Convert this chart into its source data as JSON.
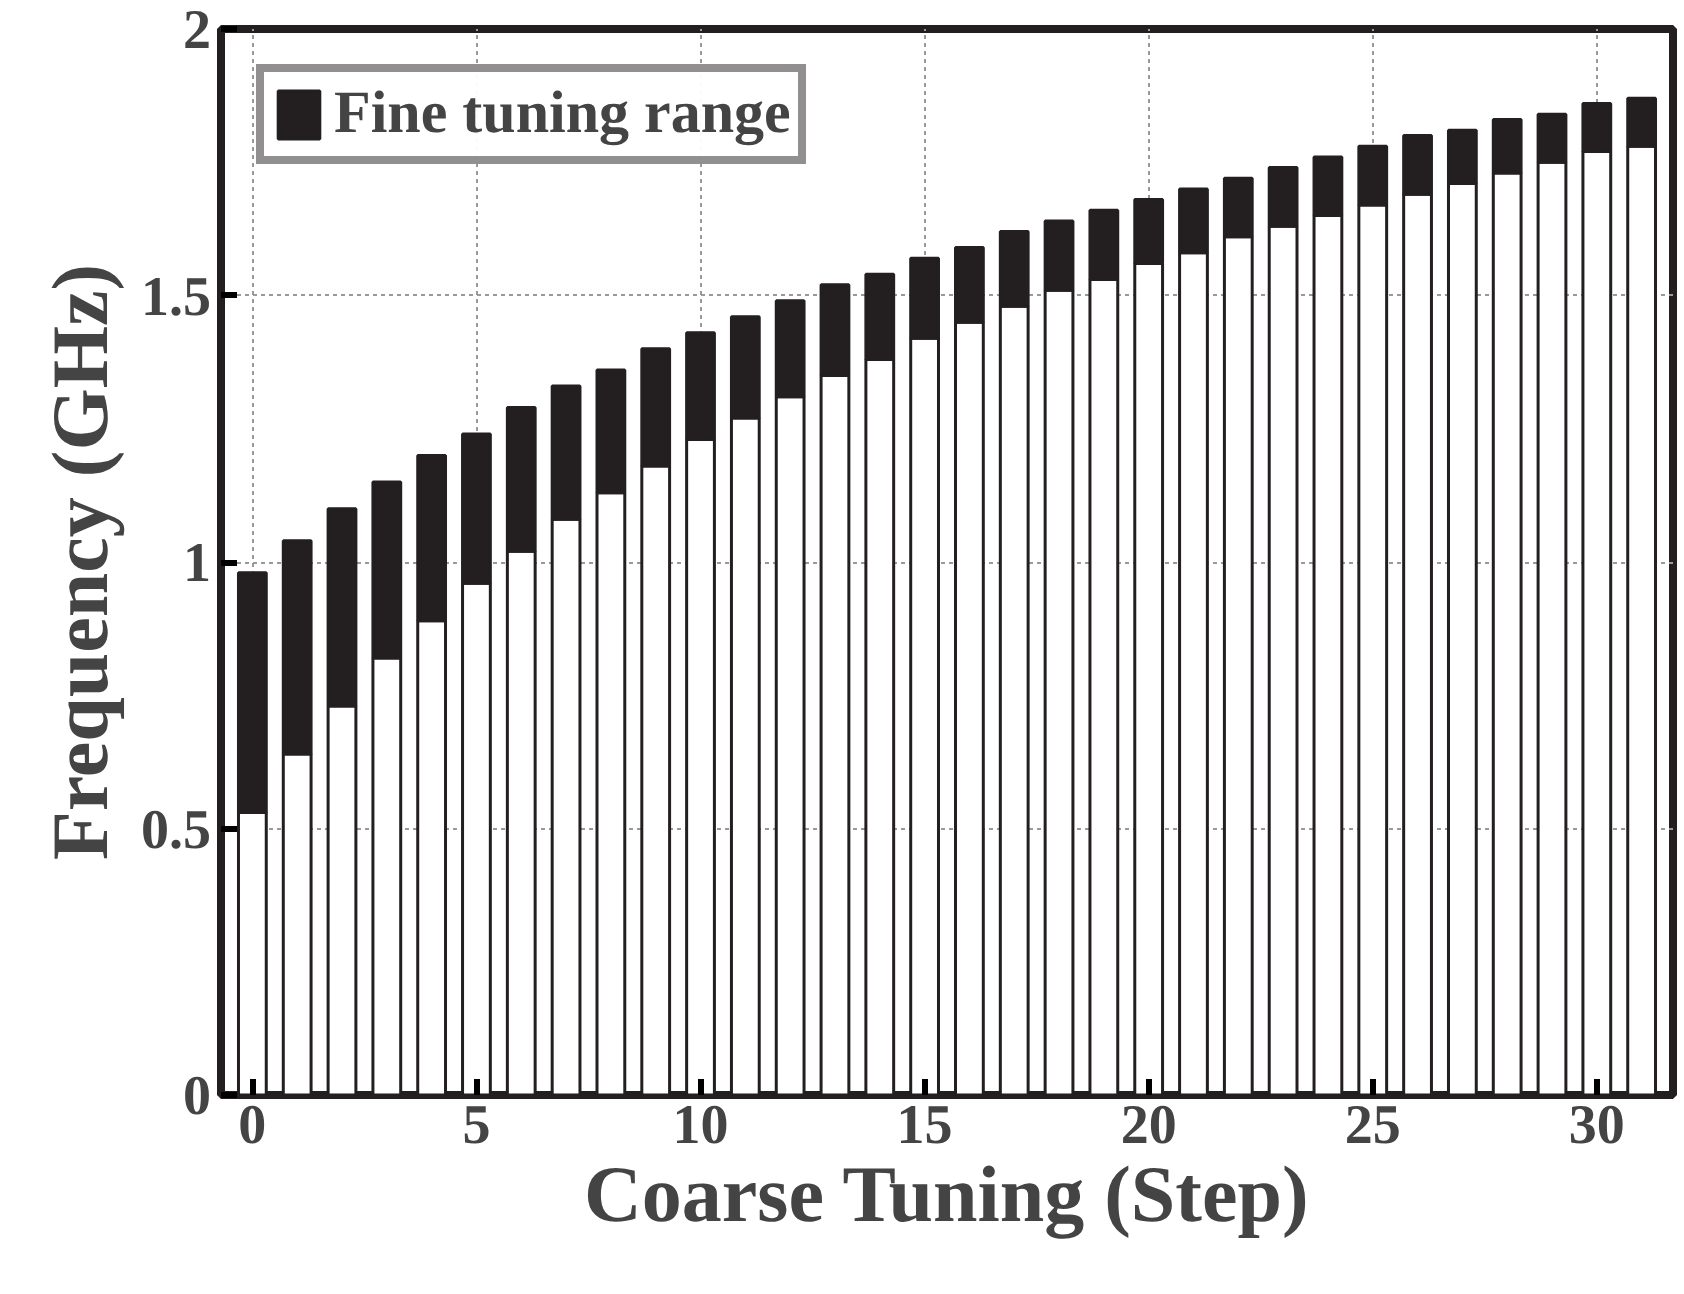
{
  "chart_data": {
    "type": "bar",
    "stacked": true,
    "xlabel": "Coarse Tuning (Step)",
    "ylabel": "Frequency (GHz)",
    "x": [
      0,
      1,
      2,
      3,
      4,
      5,
      6,
      7,
      8,
      9,
      10,
      11,
      12,
      13,
      14,
      15,
      16,
      17,
      18,
      19,
      20,
      21,
      22,
      23,
      24,
      25,
      26,
      27,
      28,
      29,
      30,
      31
    ],
    "series": [
      {
        "color": "#ffffff",
        "values": [
          0.53,
          0.64,
          0.73,
          0.82,
          0.89,
          0.96,
          1.02,
          1.08,
          1.13,
          1.18,
          1.23,
          1.27,
          1.31,
          1.35,
          1.38,
          1.42,
          1.45,
          1.48,
          1.51,
          1.53,
          1.56,
          1.58,
          1.61,
          1.63,
          1.65,
          1.67,
          1.69,
          1.71,
          1.73,
          1.75,
          1.77,
          1.78
        ]
      },
      {
        "name": "Fine tuning range",
        "color": "#231f20",
        "values": [
          0.45,
          0.4,
          0.37,
          0.33,
          0.31,
          0.28,
          0.27,
          0.25,
          0.23,
          0.22,
          0.2,
          0.19,
          0.18,
          0.17,
          0.16,
          0.15,
          0.14,
          0.14,
          0.13,
          0.13,
          0.12,
          0.12,
          0.11,
          0.11,
          0.11,
          0.11,
          0.11,
          0.1,
          0.1,
          0.09,
          0.09,
          0.09
        ]
      }
    ],
    "xlim": [
      -0.7,
      31.7
    ],
    "ylim": [
      0,
      2
    ],
    "xticks": [
      0,
      5,
      10,
      15,
      20,
      25,
      30
    ],
    "yticks": [
      0,
      {
        "value": 0.5,
        "label": "0.5"
      },
      1,
      {
        "value": 1.5,
        "label": "1.5"
      },
      2
    ],
    "grid": true,
    "legend": "top left"
  }
}
